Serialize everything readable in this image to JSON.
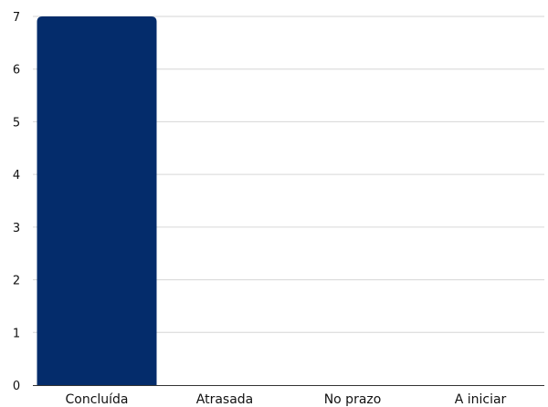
{
  "chart_data": {
    "type": "bar",
    "categories": [
      "Concluída",
      "Atrasada",
      "No prazo",
      "A iniciar"
    ],
    "values": [
      7,
      0,
      0,
      0
    ],
    "title": "",
    "xlabel": "",
    "ylabel": "",
    "ylim": [
      0,
      7
    ],
    "yticks": [
      "0",
      "1",
      "2",
      "3",
      "4",
      "5",
      "6",
      "7"
    ],
    "grid": true,
    "legend": "none",
    "bar_color": "#042c6b"
  }
}
